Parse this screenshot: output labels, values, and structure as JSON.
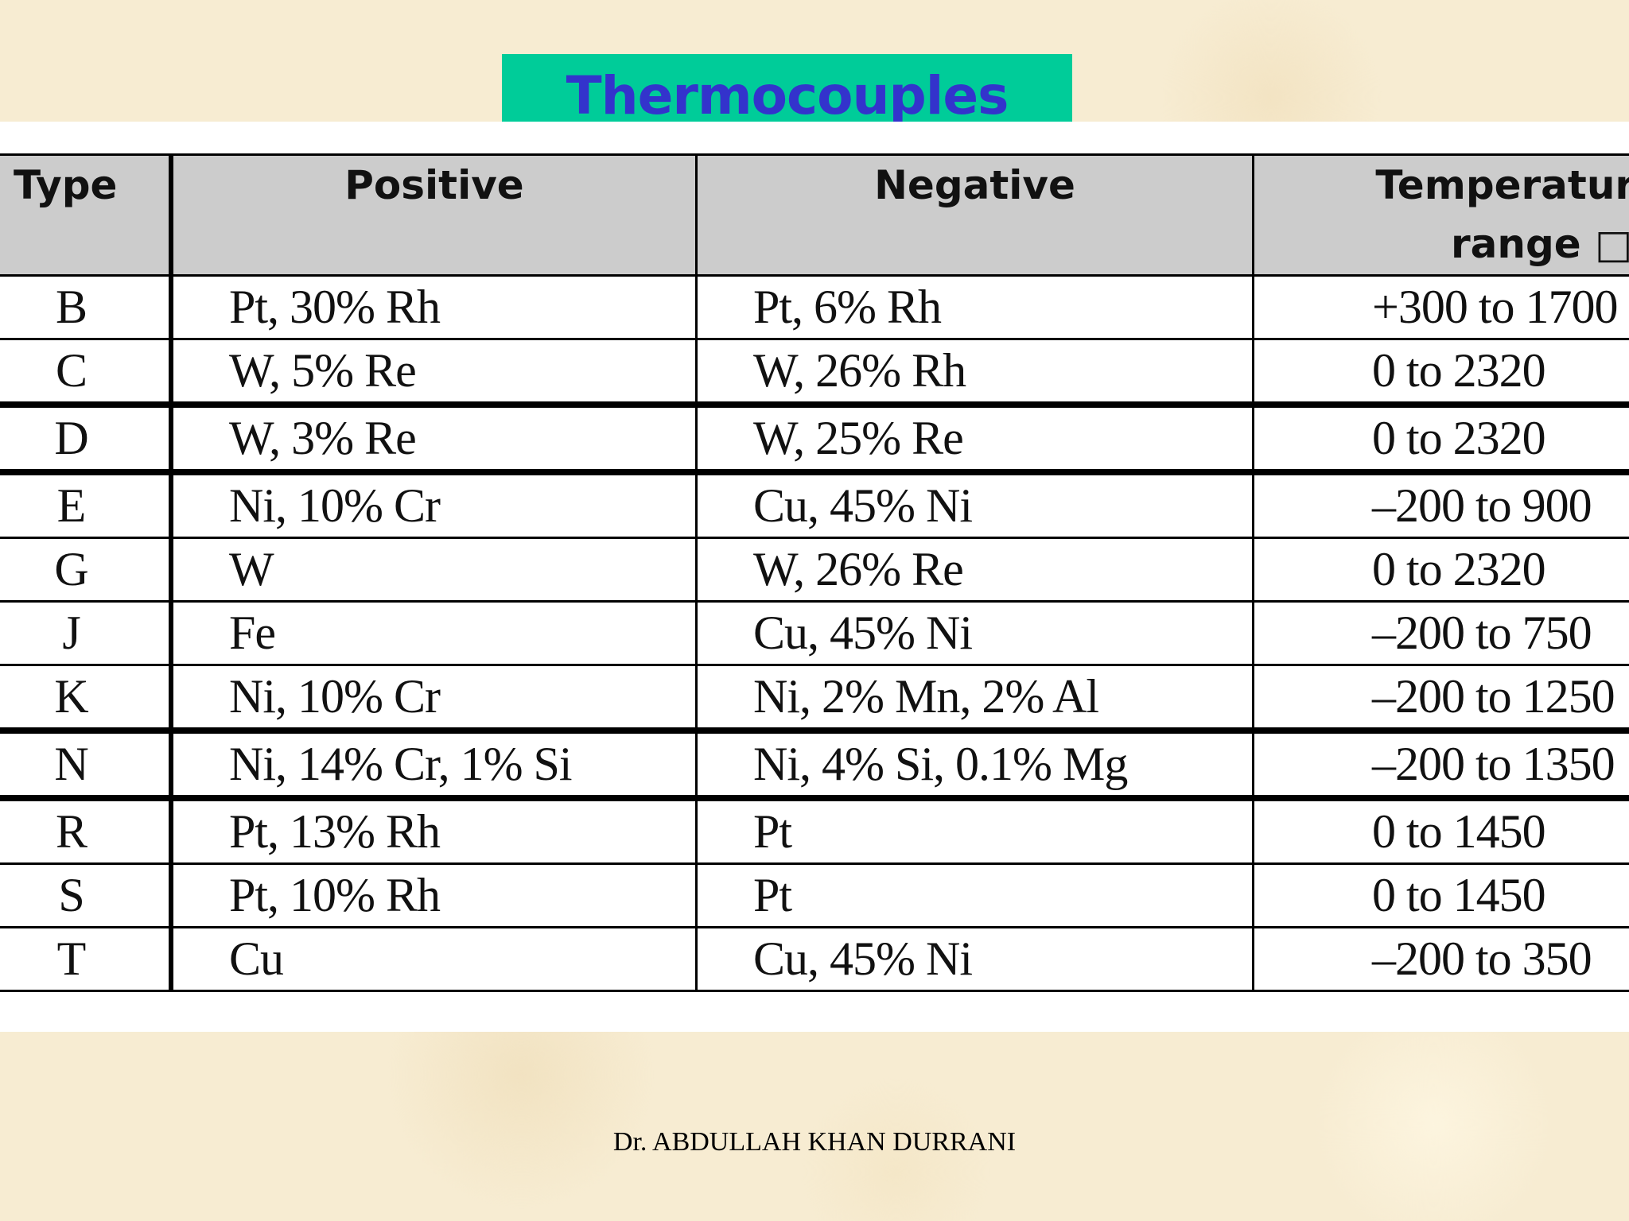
{
  "slide": {
    "title": "Thermocouples",
    "footer": "Dr. ABDULLAH KHAN DURRANI"
  },
  "table": {
    "headers": {
      "type": "Type",
      "positive": "Positive",
      "negative": "Negative",
      "range_line1": "Temperature",
      "range_line2": "range □C"
    },
    "rows": [
      {
        "type": "B",
        "positive": "Pt, 30% Rh",
        "negative": "Pt, 6% Rh",
        "range": "+300 to 1700"
      },
      {
        "type": "C",
        "positive": "W, 5% Re",
        "negative": "W, 26% Rh",
        "range": "0 to 2320"
      },
      {
        "type": "D",
        "positive": "W, 3% Re",
        "negative": "W, 25% Re",
        "range": "0 to 2320"
      },
      {
        "type": "E",
        "positive": "Ni, 10% Cr",
        "negative": "Cu, 45% Ni",
        "range": "–200 to 900"
      },
      {
        "type": "G",
        "positive": "W",
        "negative": "W, 26% Re",
        "range": "0 to 2320"
      },
      {
        "type": "J",
        "positive": "Fe",
        "negative": "Cu, 45% Ni",
        "range": "–200 to 750"
      },
      {
        "type": "K",
        "positive": "Ni, 10% Cr",
        "negative": "Ni, 2% Mn, 2% Al",
        "range": "–200 to 1250"
      },
      {
        "type": "N",
        "positive": "Ni, 14% Cr, 1% Si",
        "negative": "Ni, 4% Si, 0.1% Mg",
        "range": "–200 to 1350"
      },
      {
        "type": "R",
        "positive": "Pt, 13% Rh",
        "negative": "Pt",
        "range": "0 to 1450"
      },
      {
        "type": "S",
        "positive": "Pt, 10% Rh",
        "negative": "Pt",
        "range": "0 to 1450"
      },
      {
        "type": "T",
        "positive": "Cu",
        "negative": "Cu, 45% Ni",
        "range": "–200 to 350"
      }
    ]
  }
}
